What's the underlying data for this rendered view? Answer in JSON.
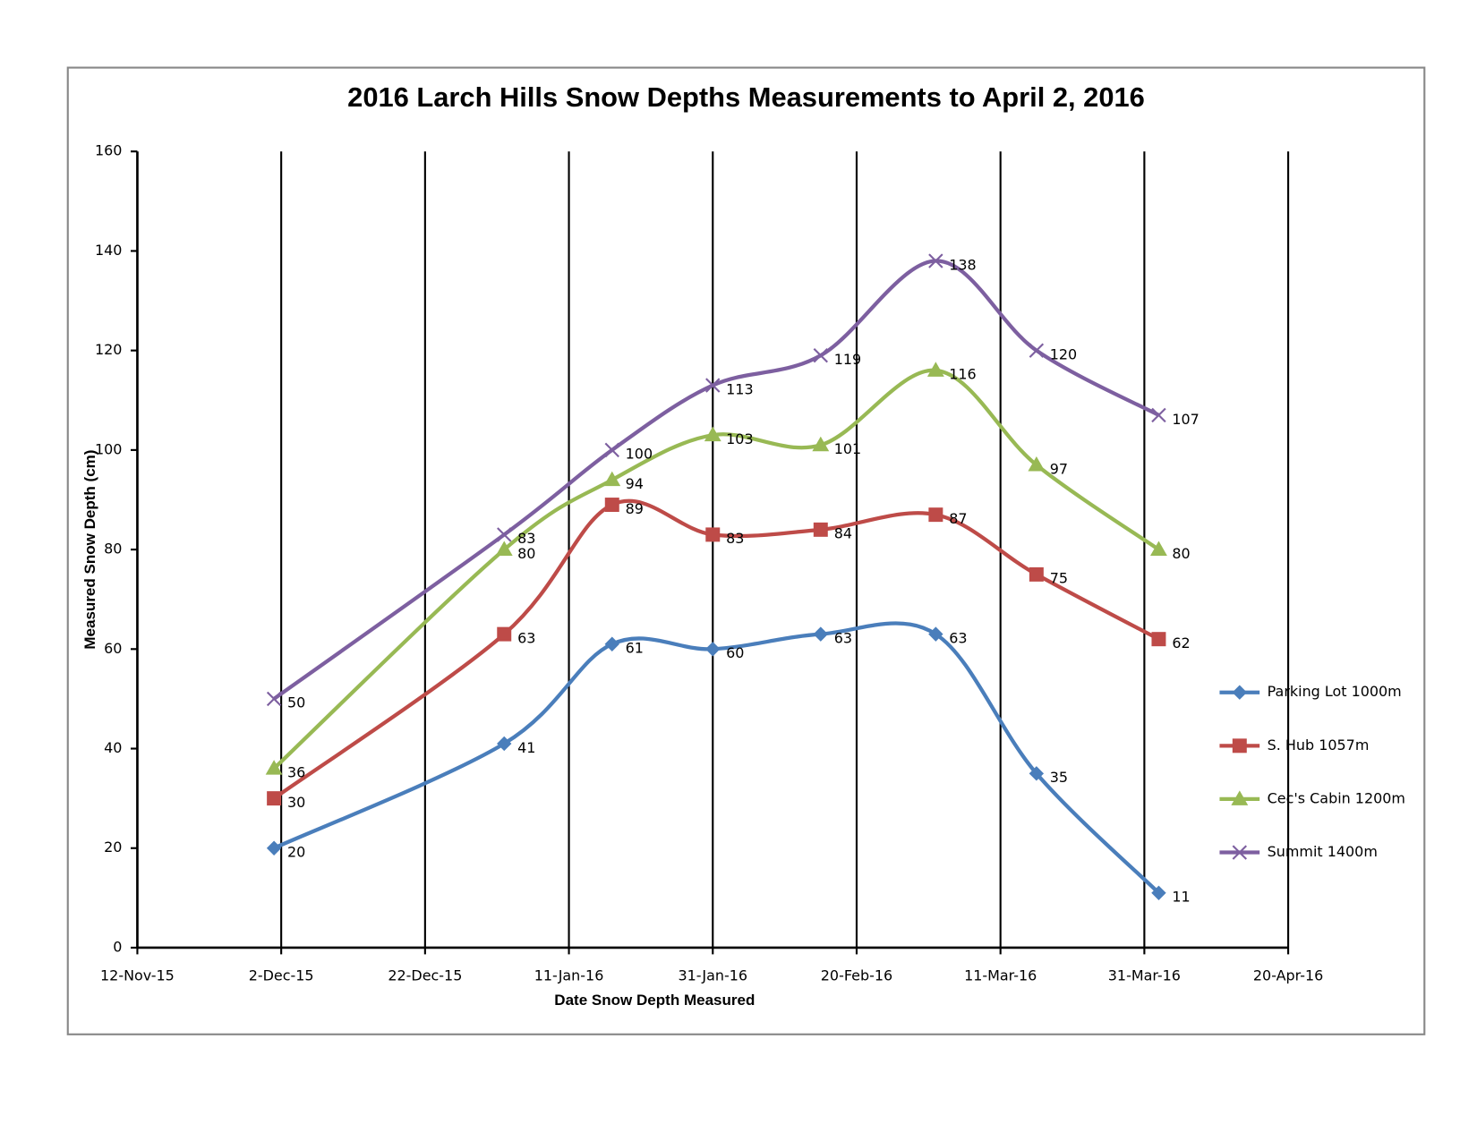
{
  "chart_data": {
    "type": "line",
    "title": "2016 Larch Hills Snow Depths Measurements to April 2, 2016",
    "x_label": "Date Snow Depth Measured",
    "y_label": "Measured Snow Depth (cm)",
    "x": [
      "2015-12-01",
      "2016-01-02",
      "2016-01-17",
      "2016-01-31",
      "2016-02-15",
      "2016-03-02",
      "2016-03-16",
      "2016-04-02"
    ],
    "series": [
      {
        "name": "Parking Lot 1000m",
        "color": "#4a7ebb",
        "marker": "diamond",
        "values": [
          20,
          41,
          61,
          60,
          63,
          63,
          35,
          11
        ]
      },
      {
        "name": "S. Hub 1057m",
        "color": "#be4b48",
        "marker": "square",
        "values": [
          30,
          63,
          89,
          83,
          84,
          87,
          75,
          62
        ]
      },
      {
        "name": "Cec's Cabin 1200m",
        "color": "#98b954",
        "marker": "triangle",
        "values": [
          36,
          80,
          94,
          103,
          101,
          116,
          97,
          80
        ]
      },
      {
        "name": "Summit 1400m",
        "color": "#7d5fa0",
        "marker": "x",
        "values": [
          50,
          83,
          100,
          113,
          119,
          138,
          120,
          107
        ]
      }
    ],
    "xlim": [
      "2015-11-12",
      "2016-04-20"
    ],
    "xticks": [
      {
        "value": "2015-11-12",
        "label": "12-Nov-15"
      },
      {
        "value": "2015-12-02",
        "label": "2-Dec-15"
      },
      {
        "value": "2015-12-22",
        "label": "22-Dec-15"
      },
      {
        "value": "2016-01-11",
        "label": "11-Jan-16"
      },
      {
        "value": "2016-01-31",
        "label": "31-Jan-16"
      },
      {
        "value": "2016-02-20",
        "label": "20-Feb-16"
      },
      {
        "value": "2016-03-11",
        "label": "11-Mar-16"
      },
      {
        "value": "2016-03-31",
        "label": "31-Mar-16"
      },
      {
        "value": "2016-04-20",
        "label": "20-Apr-16"
      }
    ],
    "ylim": [
      0,
      160
    ],
    "yticks": [
      0,
      20,
      40,
      60,
      80,
      100,
      120,
      140,
      160
    ],
    "grid": "x",
    "legend": "right"
  }
}
